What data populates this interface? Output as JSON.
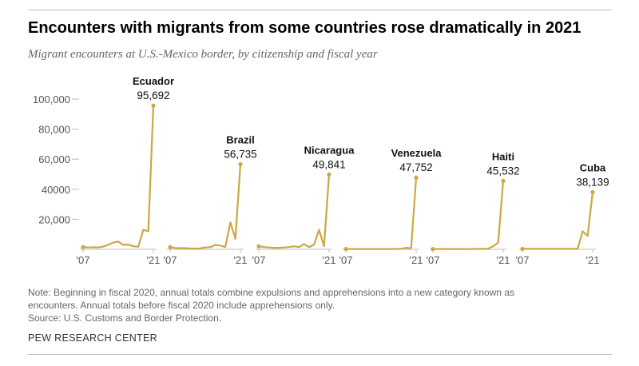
{
  "header": {
    "title": "Encounters with migrants from some countries rose dramatically in 2021",
    "subtitle": "Migrant encounters at U.S.-Mexico border, by citizenship and fiscal year"
  },
  "footer": {
    "note_lines": [
      "Note: Beginning in fiscal 2020, annual totals combine expulsions and apprehensions into a new category known as",
      "encounters. Annual totals before fiscal 2020 include apprehensions only.",
      "Source: U.S. Customs and Border Protection."
    ],
    "brand": "PEW RESEARCH CENTER"
  },
  "colors": {
    "line": "#cda743",
    "axis": "#bdbdbd",
    "tick_text": "#555555",
    "label_text": "#111111"
  },
  "chart_data": {
    "type": "line",
    "x": [
      2007,
      2008,
      2009,
      2010,
      2011,
      2012,
      2013,
      2014,
      2015,
      2016,
      2017,
      2018,
      2019,
      2020,
      2021
    ],
    "x_tick_labels": [
      "'07",
      "'21"
    ],
    "y_ticks": [
      20000,
      40000,
      60000,
      80000,
      100000
    ],
    "y_tick_labels": [
      "20,000",
      "40000",
      "60,000",
      "80,000",
      "100,000"
    ],
    "ylim": [
      0,
      100000
    ],
    "panels": [
      {
        "name": "Ecuador",
        "value_label": "95,692",
        "values": [
          1500,
          1200,
          1400,
          1200,
          1800,
          3000,
          4500,
          5200,
          3000,
          3200,
          2000,
          1700,
          13000,
          12000,
          95692
        ]
      },
      {
        "name": "Brazil",
        "value_label": "56,735",
        "values": [
          1500,
          900,
          800,
          800,
          600,
          500,
          700,
          1200,
          1500,
          3000,
          2500,
          1500,
          18000,
          7000,
          56735
        ]
      },
      {
        "name": "Nicaragua",
        "value_label": "49,841",
        "values": [
          2000,
          1500,
          1200,
          1000,
          1000,
          1200,
          1500,
          2000,
          1500,
          3500,
          1500,
          3000,
          13000,
          2000,
          49841
        ]
      },
      {
        "name": "Venezuela",
        "value_label": "47,752",
        "values": [
          200,
          200,
          200,
          200,
          200,
          200,
          200,
          200,
          200,
          200,
          200,
          300,
          1000,
          700,
          47752
        ]
      },
      {
        "name": "Haiti",
        "value_label": "45,532",
        "values": [
          200,
          200,
          200,
          200,
          200,
          200,
          200,
          200,
          200,
          300,
          300,
          500,
          2000,
          4500,
          45532
        ]
      },
      {
        "name": "Cuba",
        "value_label": "38,139",
        "values": [
          300,
          300,
          300,
          300,
          300,
          300,
          300,
          300,
          300,
          300,
          300,
          300,
          12000,
          9000,
          38139
        ]
      }
    ]
  }
}
